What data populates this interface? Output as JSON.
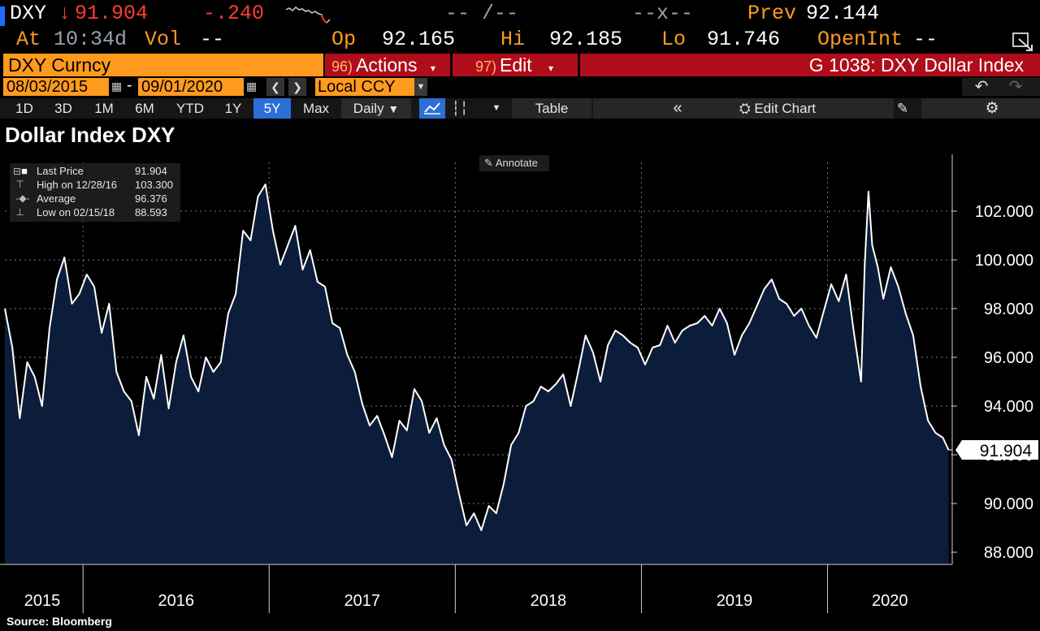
{
  "quote": {
    "ticker": "DXY",
    "arrow": "↓",
    "last": "91.904",
    "change": "-.240",
    "bid_ask": "-- /--",
    "size": "--x--",
    "prev_label": "Prev",
    "prev": "92.144",
    "at_label": "At",
    "time": "10:34d",
    "vol_label": "Vol",
    "vol": "--",
    "op_label": "Op",
    "open": "92.165",
    "hi_label": "Hi",
    "high": "92.185",
    "lo_label": "Lo",
    "low": "91.746",
    "oi_label": "OpenInt",
    "oi": "--"
  },
  "menu": {
    "security": "DXY Curncy",
    "actions_num": "96)",
    "actions": "Actions",
    "edit_num": "97)",
    "edit": "Edit",
    "page_title": "G 1038: DXY Dollar Index"
  },
  "datebar": {
    "start": "08/03/2015",
    "sep": "-",
    "end": "09/01/2020",
    "currency": "Local CCY"
  },
  "toolbar": {
    "ranges": [
      "1D",
      "3D",
      "1M",
      "6M",
      "YTD",
      "1Y",
      "5Y",
      "Max"
    ],
    "selected_range": "5Y",
    "frequency": "Daily",
    "table": "Table",
    "edit_chart": "Edit Chart"
  },
  "legend": {
    "rows": [
      {
        "label": "Last Price",
        "value": "91.904"
      },
      {
        "label": "High on 12/28/16",
        "value": "103.300"
      },
      {
        "label": "Average",
        "value": "96.376"
      },
      {
        "label": "Low on 02/15/18",
        "value": "88.593"
      }
    ]
  },
  "annotate_label": "Annotate",
  "source": "Source: Bloomberg",
  "colors": {
    "accent": "#ff9a1f",
    "menu_red": "#b00d1a",
    "area_fill": "#0b1d3a",
    "line": "#ffffff",
    "down": "#ff3b30"
  },
  "chart_data": {
    "type": "area",
    "title": "Dollar Index DXY",
    "y_tick_labels": [
      "88.000",
      "90.000",
      "92.000",
      "94.000",
      "96.000",
      "98.000",
      "100.000",
      "102.000"
    ],
    "ylim": [
      87.5,
      104
    ],
    "x_labels": [
      "2015",
      "2016",
      "2017",
      "2018",
      "2019",
      "2020"
    ],
    "xlim": [
      2015.58,
      2020.67
    ],
    "last_value_label": "91.904",
    "grid": true,
    "series": [
      {
        "x": [
          2015.58,
          2015.62,
          2015.66,
          2015.7,
          2015.74,
          2015.78,
          2015.82,
          2015.86,
          2015.9,
          2015.94,
          2015.98,
          2016.02,
          2016.06,
          2016.1,
          2016.14,
          2016.18,
          2016.22,
          2016.26,
          2016.3,
          2016.34,
          2016.38,
          2016.42,
          2016.46,
          2016.5,
          2016.54,
          2016.58,
          2016.62,
          2016.66,
          2016.7,
          2016.74,
          2016.78,
          2016.82,
          2016.86,
          2016.9,
          2016.94,
          2016.98,
          2017.02,
          2017.06,
          2017.1,
          2017.14,
          2017.18,
          2017.22,
          2017.26,
          2017.3,
          2017.34,
          2017.38,
          2017.42,
          2017.46,
          2017.5,
          2017.54,
          2017.58,
          2017.62,
          2017.66,
          2017.7,
          2017.74,
          2017.78,
          2017.82,
          2017.86,
          2017.9,
          2017.94,
          2017.98,
          2018.02,
          2018.06,
          2018.1,
          2018.14,
          2018.18,
          2018.22,
          2018.26,
          2018.3,
          2018.34,
          2018.38,
          2018.42,
          2018.46,
          2018.5,
          2018.54,
          2018.58,
          2018.62,
          2018.66,
          2018.7,
          2018.74,
          2018.78,
          2018.82,
          2018.86,
          2018.9,
          2018.94,
          2018.98,
          2019.02,
          2019.06,
          2019.1,
          2019.14,
          2019.18,
          2019.22,
          2019.26,
          2019.3,
          2019.34,
          2019.38,
          2019.42,
          2019.46,
          2019.5,
          2019.54,
          2019.58,
          2019.62,
          2019.66,
          2019.7,
          2019.74,
          2019.78,
          2019.82,
          2019.86,
          2019.9,
          2019.94,
          2019.98,
          2020.02,
          2020.06,
          2020.1,
          2020.14,
          2020.18,
          2020.2,
          2020.22,
          2020.24,
          2020.27,
          2020.3,
          2020.34,
          2020.38,
          2020.42,
          2020.46,
          2020.5,
          2020.54,
          2020.58,
          2020.62,
          2020.65
        ],
        "y": [
          98.0,
          96.4,
          93.5,
          95.8,
          95.2,
          94.0,
          97.2,
          99.2,
          100.1,
          98.2,
          98.6,
          99.4,
          98.9,
          97.0,
          98.2,
          95.4,
          94.6,
          94.2,
          92.8,
          95.2,
          94.3,
          96.1,
          93.9,
          95.8,
          96.9,
          95.2,
          94.6,
          96.0,
          95.4,
          95.8,
          97.8,
          98.6,
          101.2,
          100.8,
          102.6,
          103.1,
          101.2,
          99.8,
          100.6,
          101.4,
          99.6,
          100.4,
          99.1,
          98.9,
          97.4,
          97.2,
          96.1,
          95.4,
          94.1,
          93.2,
          93.6,
          92.8,
          91.9,
          93.4,
          93.0,
          94.7,
          94.2,
          92.9,
          93.5,
          92.4,
          91.8,
          90.4,
          89.1,
          89.6,
          88.9,
          89.9,
          89.6,
          90.8,
          92.4,
          92.9,
          94.0,
          94.2,
          94.8,
          94.6,
          94.9,
          95.3,
          94.0,
          95.4,
          96.9,
          96.2,
          95.0,
          96.5,
          97.1,
          96.9,
          96.6,
          96.4,
          95.7,
          96.4,
          96.5,
          97.3,
          96.6,
          97.1,
          97.3,
          97.4,
          97.7,
          97.3,
          98.0,
          97.4,
          96.1,
          96.9,
          97.4,
          98.1,
          98.8,
          99.2,
          98.4,
          98.2,
          97.7,
          98.0,
          97.3,
          96.8,
          97.9,
          99.0,
          98.3,
          99.4,
          97.1,
          95.0,
          99.8,
          102.8,
          100.6,
          99.7,
          98.4,
          99.7,
          98.9,
          97.8,
          96.9,
          94.8,
          93.4,
          92.9,
          92.7,
          92.2
        ]
      }
    ]
  }
}
